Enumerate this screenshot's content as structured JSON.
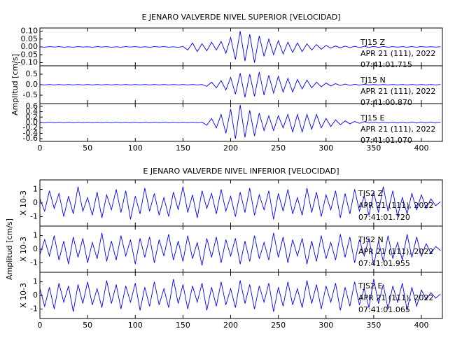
{
  "chart_data": [
    {
      "type": "line",
      "title": "E JENARO VALVERDE NIVEL SUPERIOR [VELOCIDAD]",
      "ylabel": "Amplitud [cm/s]",
      "xlim": [
        0,
        422
      ],
      "xticks": [
        0,
        50,
        100,
        150,
        200,
        250,
        300,
        350,
        400
      ],
      "x": [
        0,
        5,
        10,
        15,
        20,
        25,
        30,
        35,
        40,
        45,
        50,
        55,
        60,
        65,
        70,
        75,
        80,
        85,
        90,
        95,
        100,
        105,
        110,
        115,
        120,
        125,
        130,
        135,
        140,
        145,
        150,
        155,
        160,
        165,
        170,
        175,
        180,
        185,
        190,
        195,
        200,
        205,
        210,
        215,
        220,
        225,
        230,
        235,
        240,
        245,
        250,
        255,
        260,
        265,
        270,
        275,
        280,
        285,
        290,
        295,
        300,
        305,
        310,
        315,
        320,
        325,
        330,
        335,
        340,
        345,
        350,
        355,
        360,
        365,
        370,
        375,
        380,
        385,
        390,
        395,
        400,
        405,
        410,
        415,
        420
      ],
      "panels": [
        {
          "annotations": [
            "TJ15   Z",
            "APR 21 (111), 2022",
            "07:41:01.715"
          ],
          "color": "#0000ff",
          "ylim": [
            -0.12,
            0.12
          ],
          "yticks": [
            {
              "value": 0.1,
              "label": "0.10"
            },
            {
              "value": 0.05,
              "label": "0.05"
            },
            {
              "value": 0,
              "label": "0.00"
            },
            {
              "value": -0.05,
              "label": "-0.05"
            },
            {
              "value": -0.1,
              "label": "-0.10"
            }
          ],
          "values": [
            0.001,
            -0.002,
            0.002,
            -0.001,
            0.002,
            -0.002,
            0.001,
            -0.002,
            0.002,
            -0.001,
            0.001,
            -0.002,
            0.002,
            -0.001,
            0.002,
            -0.002,
            0.001,
            -0.002,
            0.002,
            -0.001,
            0.002,
            -0.002,
            0.001,
            -0.002,
            0.002,
            -0.001,
            0.002,
            -0.002,
            0.001,
            -0.003,
            0.003,
            -0.02,
            0.025,
            -0.03,
            0.02,
            -0.025,
            0.03,
            -0.02,
            0.035,
            -0.04,
            0.06,
            -0.08,
            0.1,
            -0.09,
            0.08,
            -0.1,
            0.07,
            -0.06,
            0.05,
            -0.05,
            0.04,
            -0.045,
            0.03,
            -0.035,
            0.025,
            -0.03,
            0.02,
            -0.02,
            0.015,
            -0.015,
            0.01,
            -0.008,
            0.006,
            -0.006,
            0.005,
            -0.005,
            0.004,
            -0.004,
            0.004,
            -0.003,
            0.003,
            -0.003,
            0.003,
            -0.002,
            0.002,
            -0.002,
            0.002,
            -0.002,
            0.002,
            -0.002,
            0.002,
            -0.001,
            0.001,
            -0.001,
            0.001
          ]
        },
        {
          "annotations": [
            "TJ15   N",
            "APR 21 (111), 2022",
            "07:41:00.870"
          ],
          "color": "#0000ff",
          "ylim": [
            -0.9,
            0.9
          ],
          "yticks": [
            0.5,
            {
              "value": 0,
              "label": "0.0"
            },
            -0.5
          ],
          "values": [
            0.01,
            -0.01,
            0.01,
            -0.01,
            0.01,
            -0.01,
            0.01,
            -0.01,
            0.01,
            -0.01,
            0.01,
            -0.01,
            0.01,
            -0.01,
            0.01,
            -0.01,
            0.01,
            -0.01,
            0.01,
            -0.01,
            0.01,
            -0.01,
            0.01,
            -0.01,
            0.01,
            -0.01,
            0.01,
            -0.01,
            0.01,
            -0.01,
            0.01,
            -0.01,
            0.01,
            -0.01,
            0.01,
            -0.08,
            0.12,
            -0.15,
            0.2,
            -0.25,
            0.35,
            -0.45,
            0.55,
            -0.6,
            0.5,
            -0.55,
            0.6,
            -0.5,
            0.45,
            -0.4,
            0.4,
            -0.35,
            0.3,
            -0.35,
            0.25,
            -0.2,
            0.22,
            -0.15,
            0.12,
            -0.1,
            0.08,
            -0.06,
            0.05,
            -0.04,
            0.03,
            -0.03,
            0.02,
            -0.02,
            0.02,
            -0.01,
            0.01,
            -0.01,
            0.01,
            -0.01,
            0.01,
            -0.01,
            0.01,
            -0.01,
            0.01,
            -0.01,
            0.01,
            -0.01,
            0.01,
            -0.01,
            0.01
          ]
        },
        {
          "annotations": [
            "TJ15   E",
            "APR 21 (111), 2022",
            "07:41:01.070"
          ],
          "color": "#0000ff",
          "ylim": [
            -0.7,
            0.7
          ],
          "yticks": [
            0.6,
            0.4,
            0.2,
            {
              "value": 0,
              "label": "0.0"
            },
            -0.2,
            -0.4,
            -0.6
          ],
          "values": [
            0.01,
            -0.01,
            0.01,
            -0.01,
            0.01,
            -0.01,
            0.01,
            -0.01,
            0.01,
            -0.01,
            0.01,
            -0.01,
            0.01,
            -0.01,
            0.01,
            -0.01,
            0.01,
            -0.01,
            0.01,
            -0.01,
            0.01,
            -0.01,
            0.01,
            -0.01,
            0.01,
            -0.01,
            0.01,
            -0.01,
            0.01,
            -0.01,
            0.01,
            -0.01,
            0.01,
            -0.01,
            0.01,
            -0.1,
            0.15,
            -0.2,
            0.3,
            -0.4,
            0.5,
            -0.6,
            0.65,
            -0.55,
            0.45,
            -0.5,
            0.35,
            -0.3,
            0.25,
            -0.3,
            0.25,
            -0.2,
            0.3,
            -0.35,
            0.3,
            -0.35,
            0.3,
            -0.25,
            0.3,
            -0.2,
            0.15,
            -0.15,
            0.1,
            -0.08,
            0.06,
            -0.05,
            0.04,
            -0.03,
            0.03,
            -0.02,
            0.02,
            -0.02,
            0.02,
            -0.02,
            0.02,
            -0.02,
            0.02,
            -0.02,
            0.02,
            -0.02,
            0.02,
            -0.02,
            0.02,
            -0.02,
            0.02
          ]
        }
      ]
    },
    {
      "type": "line",
      "title": "E JENARO VALVERDE NIVEL INFERIOR [VELOCIDAD]",
      "ylabel": "Amplitud [cm/s]",
      "xlim": [
        0,
        422
      ],
      "xticks": [
        0,
        50,
        100,
        150,
        200,
        250,
        300,
        350,
        400
      ],
      "x": [
        0,
        5,
        10,
        15,
        20,
        25,
        30,
        35,
        40,
        45,
        50,
        55,
        60,
        65,
        70,
        75,
        80,
        85,
        90,
        95,
        100,
        105,
        110,
        115,
        120,
        125,
        130,
        135,
        140,
        145,
        150,
        155,
        160,
        165,
        170,
        175,
        180,
        185,
        190,
        195,
        200,
        205,
        210,
        215,
        220,
        225,
        230,
        235,
        240,
        245,
        250,
        255,
        260,
        265,
        270,
        275,
        280,
        285,
        290,
        295,
        300,
        305,
        310,
        315,
        320,
        325,
        330,
        335,
        340,
        345,
        350,
        355,
        360,
        365,
        370,
        375,
        380,
        385,
        390,
        395,
        400,
        405,
        410,
        415,
        420
      ],
      "panels": [
        {
          "annotations": [
            "TJS2   Z",
            "APR 21 (111), 2022",
            "07:41:01.720"
          ],
          "scale_label": "X 10-3",
          "color": "#0000ff",
          "ylim": [
            -1.7,
            1.7
          ],
          "yticks": [
            1,
            0,
            -1
          ],
          "values": [
            0.3,
            -0.6,
            0.9,
            -0.4,
            0.7,
            -1.0,
            0.5,
            -0.8,
            1.2,
            -0.6,
            0.4,
            -0.9,
            0.8,
            -1.1,
            0.6,
            -0.5,
            1.0,
            -0.7,
            0.9,
            -1.2,
            0.5,
            -0.8,
            1.1,
            -0.6,
            0.7,
            -0.9,
            0.4,
            -1.0,
            0.8,
            -0.5,
            1.2,
            -0.7,
            0.6,
            -1.1,
            0.9,
            -0.4,
            0.7,
            -0.8,
            1.0,
            -0.6,
            0.5,
            -1.0,
            0.8,
            -0.7,
            1.1,
            -0.9,
            0.6,
            -0.5,
            0.9,
            -1.2,
            0.7,
            -0.6,
            1.0,
            -0.8,
            0.4,
            -0.9,
            1.1,
            -0.7,
            0.8,
            -1.0,
            0.6,
            -0.5,
            0.9,
            -1.1,
            0.7,
            -0.8,
            1.0,
            -0.6,
            0.5,
            -0.9,
            0.8,
            -0.7,
            1.2,
            -0.6,
            0.9,
            -1.0,
            0.4,
            -0.8,
            0.7,
            -0.5,
            0.6,
            -0.4,
            0.3,
            -0.2,
            0.1
          ]
        },
        {
          "annotations": [
            "TJS2   N",
            "APR 21 (111), 2022",
            "07:41:01.955"
          ],
          "scale_label": "X 10-3",
          "color": "#0000ff",
          "ylim": [
            -1.7,
            1.7
          ],
          "yticks": [
            1,
            0,
            -1
          ],
          "values": [
            -0.4,
            0.7,
            -0.5,
            1.0,
            -0.8,
            0.6,
            -1.1,
            0.9,
            -0.6,
            0.8,
            -1.0,
            0.5,
            -0.7,
            1.2,
            -0.9,
            0.6,
            -0.8,
            1.0,
            -0.5,
            0.7,
            -1.1,
            0.8,
            -0.6,
            0.9,
            -1.0,
            0.7,
            -0.5,
            1.1,
            -0.8,
            0.6,
            -0.9,
            1.0,
            -0.7,
            0.5,
            -1.2,
            0.8,
            -0.6,
            0.9,
            -1.0,
            0.7,
            -0.5,
            0.8,
            -1.1,
            0.6,
            -0.9,
            1.0,
            -0.7,
            0.5,
            -0.8,
            1.2,
            -0.6,
            0.9,
            -1.0,
            0.7,
            -0.5,
            0.8,
            -1.1,
            0.6,
            -0.9,
            1.0,
            -0.7,
            0.5,
            -0.8,
            1.1,
            -0.6,
            0.9,
            -1.0,
            0.7,
            -0.5,
            0.8,
            -1.2,
            0.6,
            -0.9,
            1.0,
            -0.7,
            0.5,
            -0.8,
            1.1,
            -0.6,
            0.9,
            -0.5,
            0.4,
            -0.3,
            0.2,
            -0.1
          ]
        },
        {
          "annotations": [
            "TJS2   E",
            "APR 21 (111), 2022",
            "07:41:01.065"
          ],
          "scale_label": "X 10-3",
          "color": "#0000ff",
          "ylim": [
            -1.7,
            1.7
          ],
          "yticks": [
            1,
            0,
            -1
          ],
          "values": [
            0.5,
            -0.8,
            0.6,
            -1.0,
            0.9,
            -0.5,
            0.7,
            -1.2,
            0.8,
            -0.6,
            1.0,
            -0.7,
            0.5,
            -0.9,
            1.1,
            -0.6,
            0.8,
            -1.0,
            0.7,
            -0.5,
            0.9,
            -1.1,
            0.6,
            -0.8,
            1.0,
            -0.7,
            0.5,
            -0.9,
            1.2,
            -0.6,
            0.8,
            -1.0,
            0.7,
            -0.5,
            0.9,
            -1.1,
            0.6,
            -0.8,
            1.0,
            -0.7,
            0.5,
            -0.9,
            1.1,
            -0.6,
            0.8,
            -1.0,
            0.7,
            -0.5,
            0.9,
            -1.2,
            0.6,
            -0.8,
            1.0,
            -0.7,
            0.5,
            -0.9,
            1.1,
            -0.6,
            0.8,
            -1.0,
            0.7,
            -0.5,
            0.9,
            -1.1,
            0.6,
            -0.8,
            1.0,
            -0.7,
            0.5,
            -0.9,
            1.2,
            -0.6,
            0.8,
            -1.0,
            0.7,
            -0.5,
            0.9,
            -1.1,
            0.6,
            -0.8,
            0.4,
            -0.3,
            0.2,
            -0.2,
            0.1
          ]
        }
      ]
    }
  ]
}
